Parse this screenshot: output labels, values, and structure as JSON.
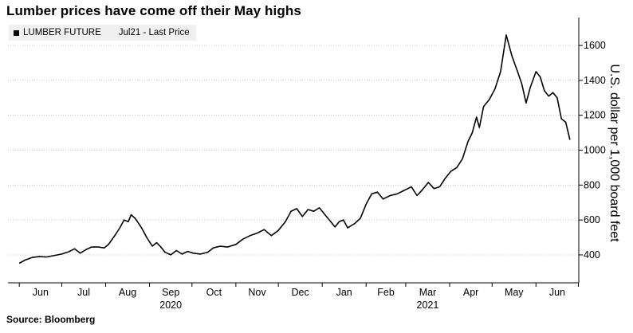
{
  "title": "Lumber prices have come off their May highs",
  "legend": {
    "series": "LUMBER FUTURE",
    "detail": "Jul21 - Last Price"
  },
  "source": "Source: Bloomberg",
  "chart_data": {
    "type": "line",
    "title": "Lumber prices have come off their May highs",
    "ylabel": "U.S. dollar per 1,000 board feet",
    "ylim": [
      240,
      1760
    ],
    "yticks": [
      400,
      600,
      800,
      1000,
      1200,
      1400,
      1600
    ],
    "grid": "horizontal-dotted",
    "legend_position": "top-left",
    "month_labels": [
      "Jun",
      "Jul",
      "Aug",
      "Sep",
      "Oct",
      "Nov",
      "Dec",
      "Jan",
      "Feb",
      "Mar",
      "Apr",
      "May",
      "Jun"
    ],
    "year_labels": [
      {
        "label": "2020",
        "under_month": "Sep"
      },
      {
        "label": "2021",
        "under_month": "Mar"
      }
    ],
    "series": [
      {
        "name": "LUMBER FUTURE Jul21 - Last Price",
        "color": "#000000",
        "points": [
          [
            "2020-06-01",
            352
          ],
          [
            "2020-06-05",
            370
          ],
          [
            "2020-06-10",
            385
          ],
          [
            "2020-06-15",
            390
          ],
          [
            "2020-06-20",
            388
          ],
          [
            "2020-06-25",
            395
          ],
          [
            "2020-07-01",
            405
          ],
          [
            "2020-07-06",
            418
          ],
          [
            "2020-07-10",
            435
          ],
          [
            "2020-07-14",
            410
          ],
          [
            "2020-07-18",
            430
          ],
          [
            "2020-07-22",
            445
          ],
          [
            "2020-07-27",
            445
          ],
          [
            "2020-07-31",
            440
          ],
          [
            "2020-08-03",
            460
          ],
          [
            "2020-08-07",
            505
          ],
          [
            "2020-08-11",
            555
          ],
          [
            "2020-08-14",
            600
          ],
          [
            "2020-08-17",
            590
          ],
          [
            "2020-08-19",
            630
          ],
          [
            "2020-08-22",
            608
          ],
          [
            "2020-08-26",
            560
          ],
          [
            "2020-08-30",
            500
          ],
          [
            "2020-09-03",
            450
          ],
          [
            "2020-09-06",
            470
          ],
          [
            "2020-09-09",
            445
          ],
          [
            "2020-09-12",
            415
          ],
          [
            "2020-09-16",
            400
          ],
          [
            "2020-09-20",
            425
          ],
          [
            "2020-09-24",
            405
          ],
          [
            "2020-09-28",
            420
          ],
          [
            "2020-10-02",
            410
          ],
          [
            "2020-10-07",
            405
          ],
          [
            "2020-10-12",
            415
          ],
          [
            "2020-10-16",
            440
          ],
          [
            "2020-10-21",
            450
          ],
          [
            "2020-10-26",
            445
          ],
          [
            "2020-11-01",
            460
          ],
          [
            "2020-11-06",
            490
          ],
          [
            "2020-11-11",
            510
          ],
          [
            "2020-11-16",
            525
          ],
          [
            "2020-11-21",
            545
          ],
          [
            "2020-11-26",
            510
          ],
          [
            "2020-12-01",
            540
          ],
          [
            "2020-12-06",
            590
          ],
          [
            "2020-12-10",
            650
          ],
          [
            "2020-12-14",
            665
          ],
          [
            "2020-12-18",
            620
          ],
          [
            "2020-12-22",
            660
          ],
          [
            "2020-12-26",
            650
          ],
          [
            "2020-12-30",
            670
          ],
          [
            "2021-01-03",
            630
          ],
          [
            "2021-01-06",
            600
          ],
          [
            "2021-01-10",
            560
          ],
          [
            "2021-01-13",
            590
          ],
          [
            "2021-01-16",
            600
          ],
          [
            "2021-01-19",
            555
          ],
          [
            "2021-01-24",
            580
          ],
          [
            "2021-01-28",
            610
          ],
          [
            "2021-02-01",
            690
          ],
          [
            "2021-02-05",
            750
          ],
          [
            "2021-02-09",
            760
          ],
          [
            "2021-02-13",
            720
          ],
          [
            "2021-02-18",
            740
          ],
          [
            "2021-02-23",
            750
          ],
          [
            "2021-02-28",
            770
          ],
          [
            "2021-03-05",
            790
          ],
          [
            "2021-03-09",
            740
          ],
          [
            "2021-03-13",
            775
          ],
          [
            "2021-03-17",
            815
          ],
          [
            "2021-03-21",
            780
          ],
          [
            "2021-03-25",
            790
          ],
          [
            "2021-03-29",
            840
          ],
          [
            "2021-04-02",
            880
          ],
          [
            "2021-04-06",
            900
          ],
          [
            "2021-04-10",
            950
          ],
          [
            "2021-04-14",
            1050
          ],
          [
            "2021-04-17",
            1100
          ],
          [
            "2021-04-20",
            1190
          ],
          [
            "2021-04-22",
            1130
          ],
          [
            "2021-04-25",
            1250
          ],
          [
            "2021-04-29",
            1290
          ],
          [
            "2021-05-03",
            1350
          ],
          [
            "2021-05-07",
            1450
          ],
          [
            "2021-05-11",
            1660
          ],
          [
            "2021-05-15",
            1540
          ],
          [
            "2021-05-19",
            1450
          ],
          [
            "2021-05-22",
            1380
          ],
          [
            "2021-05-25",
            1270
          ],
          [
            "2021-05-28",
            1360
          ],
          [
            "2021-06-01",
            1450
          ],
          [
            "2021-06-04",
            1420
          ],
          [
            "2021-06-07",
            1340
          ],
          [
            "2021-06-10",
            1310
          ],
          [
            "2021-06-13",
            1330
          ],
          [
            "2021-06-16",
            1300
          ],
          [
            "2021-06-19",
            1180
          ],
          [
            "2021-06-22",
            1160
          ],
          [
            "2021-06-25",
            1060
          ]
        ]
      }
    ]
  }
}
